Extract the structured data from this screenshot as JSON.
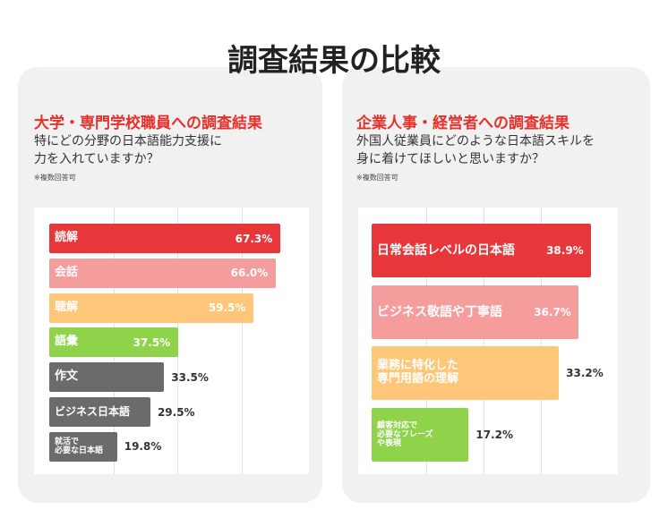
{
  "title": "調査結果の比較",
  "chart_data": [
    {
      "type": "bar",
      "orientation": "horizontal",
      "title": "大学・専門学校職員への調査結果",
      "subtitle": "特にどの分野の日本語能力支援に\n力を入れていますか？",
      "note": "※複数回答可",
      "categories": [
        "読解",
        "会話",
        "聴解",
        "語彙",
        "作文",
        "ビジネス日本語",
        "就活で\n必要な日本語"
      ],
      "values": [
        67.3,
        66.0,
        59.5,
        37.5,
        33.5,
        29.5,
        19.8
      ],
      "value_labels": [
        "67.3%",
        "66.0%",
        "59.5%",
        "37.5%",
        "33.5%",
        "29.5%",
        "19.8%"
      ],
      "colors": [
        "#e8373a",
        "#f59c9c",
        "#fdc678",
        "#8ed34a",
        "#6b6b6b",
        "#6b6b6b",
        "#6b6b6b"
      ],
      "xlim": [
        0,
        70
      ]
    },
    {
      "type": "bar",
      "orientation": "horizontal",
      "title": "企業人事・経営者への調査結果",
      "subtitle": "外国人従業員にどのような日本語スキルを\n身に着けてほしいと思いますか？",
      "note": "※複数回答可",
      "categories": [
        "日常会話レベルの日本語",
        "ビジネス敬語や丁寧語",
        "業務に特化した\n専門用語の理解",
        "顧客対応で\n必要なフレーズ\nや表現"
      ],
      "values": [
        38.9,
        36.7,
        33.2,
        17.2
      ],
      "value_labels": [
        "38.9%",
        "36.7%",
        "33.2%",
        "17.2%"
      ],
      "colors": [
        "#e8373a",
        "#f59c9c",
        "#fdc678",
        "#8ed34a"
      ],
      "xlim": [
        0,
        40
      ]
    }
  ]
}
